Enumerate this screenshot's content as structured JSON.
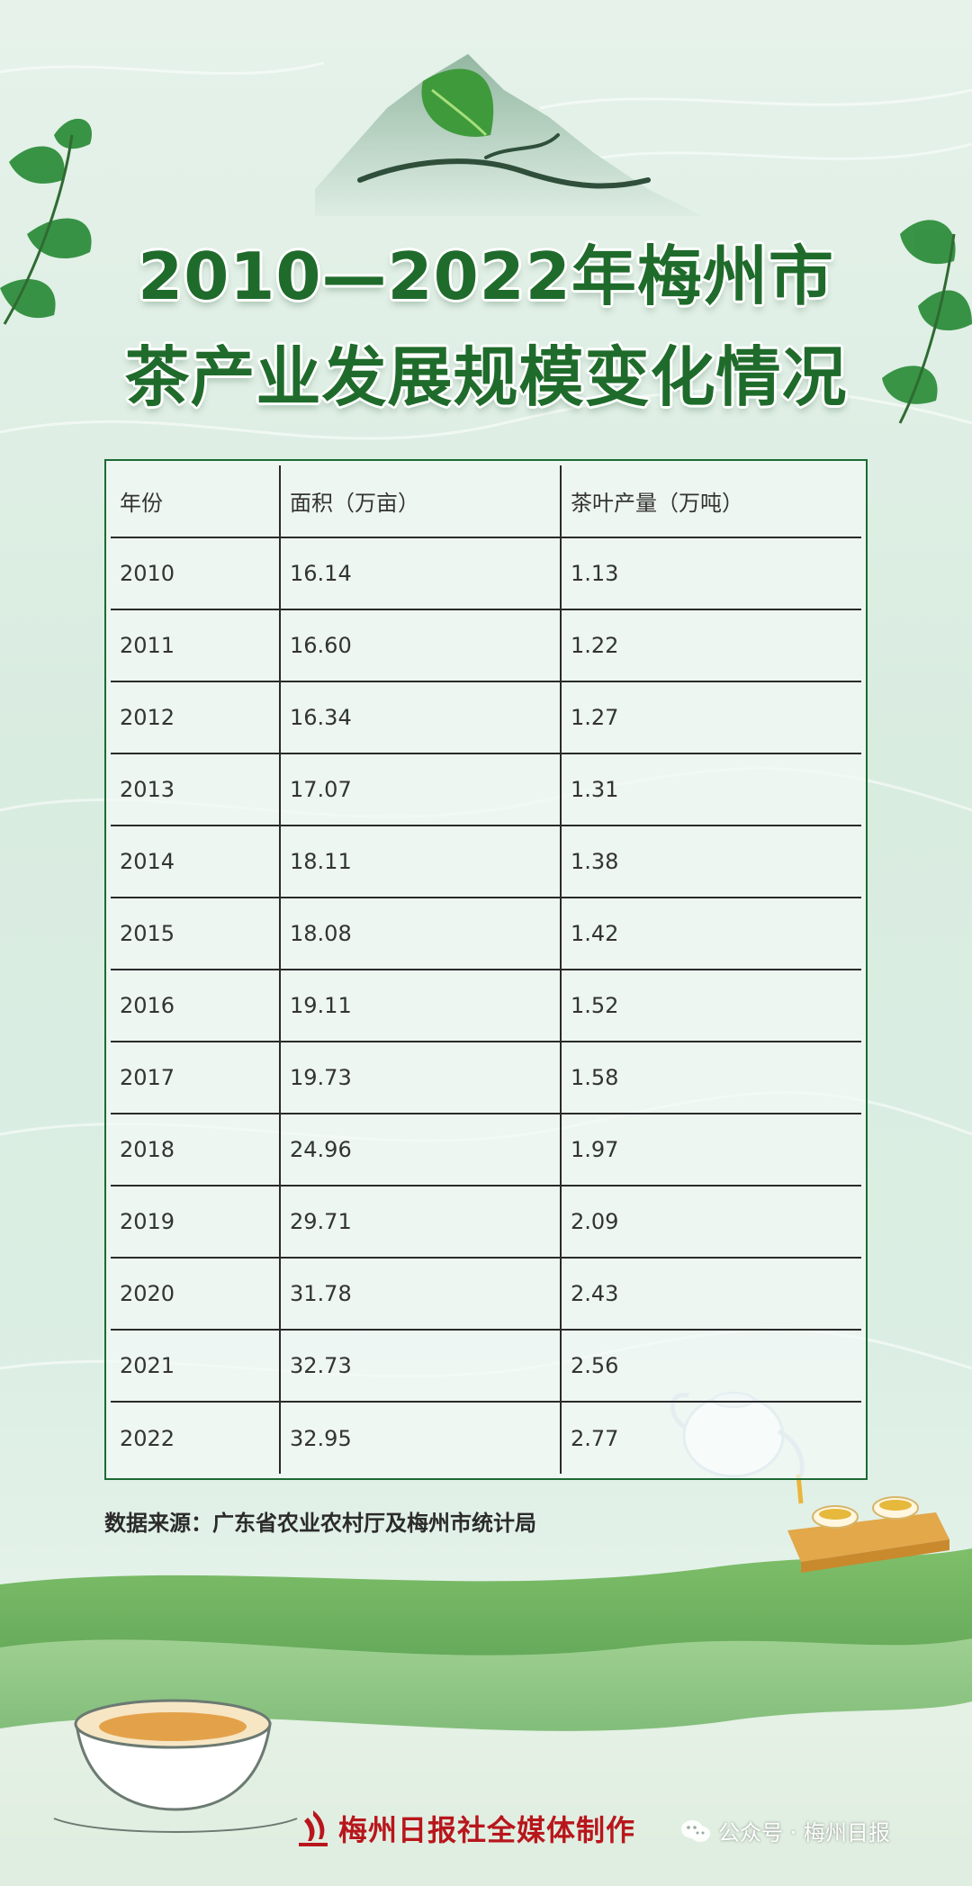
{
  "title": {
    "line1": "2010—2022年梅州市",
    "line2": "茶产业发展规模变化情况"
  },
  "table": {
    "headers": [
      "年份",
      "面积（万亩）",
      "茶叶产量（万吨）"
    ],
    "rows": [
      [
        "2010",
        "16.14",
        "1.13"
      ],
      [
        "2011",
        "16.60",
        "1.22"
      ],
      [
        "2012",
        "16.34",
        "1.27"
      ],
      [
        "2013",
        "17.07",
        "1.31"
      ],
      [
        "2014",
        "18.11",
        "1.38"
      ],
      [
        "2015",
        "18.08",
        "1.42"
      ],
      [
        "2016",
        "19.11",
        "1.52"
      ],
      [
        "2017",
        "19.73",
        "1.58"
      ],
      [
        "2018",
        "24.96",
        "1.97"
      ],
      [
        "2019",
        "29.71",
        "2.09"
      ],
      [
        "2020",
        "31.78",
        "2.43"
      ],
      [
        "2021",
        "32.73",
        "2.56"
      ],
      [
        "2022",
        "32.95",
        "2.77"
      ]
    ]
  },
  "source": "数据来源：广东省农业农村厅及梅州市统计局",
  "footer": {
    "credit": "梅州日报社全媒体制作",
    "wechat": "公众号 · 梅州日报"
  },
  "colors": {
    "title_green": "#1f6b2b",
    "table_border": "#1c6a33",
    "footer_red": "#b8161c"
  },
  "icons": [
    "mountain-illustration",
    "tea-leaf-icon",
    "teapot-illustration",
    "tea-cup-illustration",
    "meizhou-daily-logo-icon",
    "wechat-icon"
  ]
}
